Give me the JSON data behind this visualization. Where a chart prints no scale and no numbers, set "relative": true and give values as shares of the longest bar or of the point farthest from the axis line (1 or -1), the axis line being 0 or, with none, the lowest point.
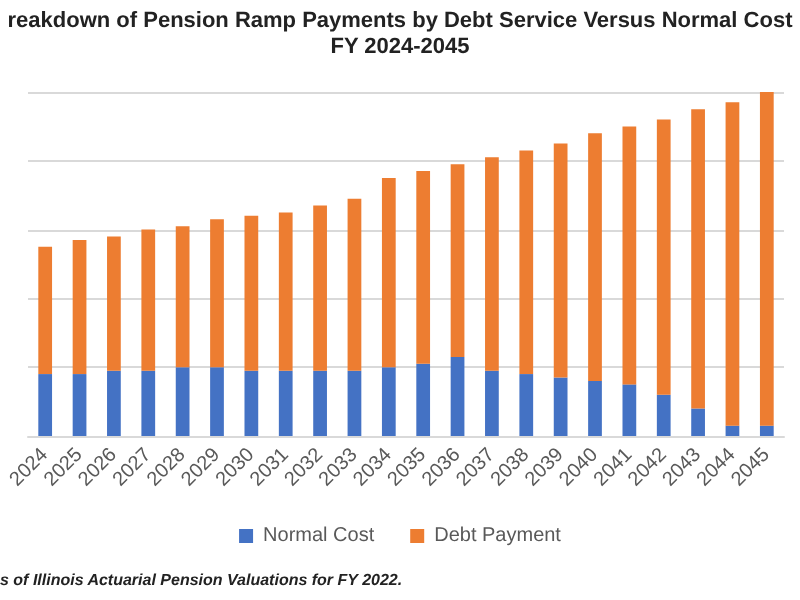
{
  "chart_data": {
    "type": "bar",
    "title": "reakdown of Pension Ramp Payments by Debt Service Versus Normal Cost",
    "subtitle": "FY 2024-2045",
    "categories": [
      "2024",
      "2025",
      "2026",
      "2027",
      "2028",
      "2029",
      "2030",
      "2031",
      "2032",
      "2033",
      "2034",
      "2035",
      "2036",
      "2037",
      "2038",
      "2039",
      "2040",
      "2041",
      "2042",
      "2043",
      "2044",
      "2045"
    ],
    "series": [
      {
        "name": "Normal Cost",
        "color": "#4472c4",
        "values": [
          0.18,
          0.18,
          0.19,
          0.19,
          0.2,
          0.2,
          0.19,
          0.19,
          0.19,
          0.19,
          0.2,
          0.21,
          0.23,
          0.19,
          0.18,
          0.17,
          0.16,
          0.15,
          0.12,
          0.08,
          0.03,
          0.03
        ]
      },
      {
        "name": "Debt Payment",
        "color": "#ed7d31",
        "values": [
          0.37,
          0.39,
          0.39,
          0.41,
          0.41,
          0.43,
          0.45,
          0.46,
          0.48,
          0.5,
          0.55,
          0.56,
          0.56,
          0.62,
          0.65,
          0.68,
          0.72,
          0.75,
          0.8,
          0.87,
          0.94,
          0.97
        ]
      }
    ],
    "stacked": true,
    "relative": true,
    "grid": "y",
    "legend": "bottom",
    "annotations": [
      "s of Illinois Actuarial Pension Valuations for FY 2022."
    ]
  }
}
